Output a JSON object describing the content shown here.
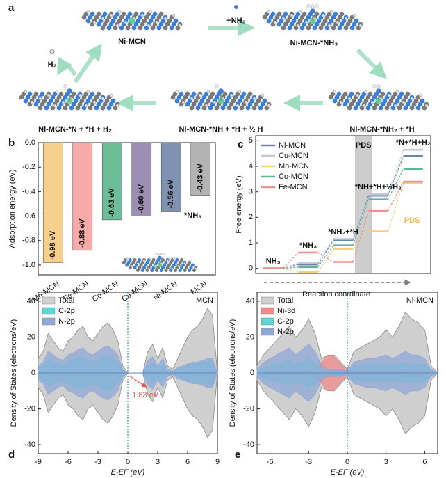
{
  "scheme": {
    "panel_label": "a",
    "labels": [
      "Ni-MCN",
      "+NH₃",
      "Ni-MCN-*NH₃",
      "H₂",
      "Ni-MCN-*N + *H + H₂",
      "Ni-MCN-*NH + *H + ½ H",
      "Ni-MCN-*NH₂ + *H"
    ]
  },
  "chart_data": [
    {
      "type": "bar",
      "panel_label": "b",
      "ylabel": "Adsorption energy (eV)",
      "annotation": "*NH₃",
      "categories": [
        "Mn-MCN",
        "Fe-MCN",
        "Co-MCN",
        "Cu-MCN",
        "Ni-MCN",
        "MCN"
      ],
      "values": [
        -0.98,
        -0.88,
        -0.63,
        -0.6,
        -0.56,
        -0.43
      ],
      "value_labels": [
        "-0.98 eV",
        "-0.88 eV",
        "-0.63 eV",
        "-0.60 eV",
        "-0.56 eV",
        "-0.43 eV"
      ],
      "colors": [
        "#f6d18e",
        "#f8a9aa",
        "#6dbd98",
        "#9c8fb3",
        "#7f92b2",
        "#b3b3b3"
      ],
      "ylim": [
        -1.08,
        0
      ],
      "yticks": [
        {
          "value": 0,
          "label": "0.0"
        },
        -0.2,
        -0.4,
        -0.6,
        -0.8,
        {
          "value": -1,
          "label": "-1.0"
        }
      ]
    },
    {
      "type": "energy_levels",
      "panel_label": "c",
      "ylabel": "Free energy (eV)",
      "xlabel": "Reaction coordinate",
      "categories": [
        "NH₃",
        "*NH₃",
        "*NH₂+*H",
        "*NH+*H+½H₂",
        "*N+*H+H₂"
      ],
      "series": [
        {
          "name": "Ni-MCN",
          "color": "#6f82a8",
          "values": [
            0,
            0.15,
            1.1,
            2.85,
            4.4
          ]
        },
        {
          "name": "Cu-MCN",
          "color": "#c5c6d8",
          "values": [
            0,
            0.2,
            1.15,
            2.9,
            4.65
          ]
        },
        {
          "name": "Mn-MCN",
          "color": "#f5cf80",
          "values": [
            0,
            -0.15,
            0.75,
            1.45,
            3.35
          ]
        },
        {
          "name": "Co-MCN",
          "color": "#5fb59a",
          "values": [
            0,
            0.05,
            0.9,
            2.7,
            3.9
          ]
        },
        {
          "name": "Fe-MCN",
          "color": "#f08f8f",
          "values": [
            0,
            0.62,
            0.25,
            2.25,
            3.4
          ]
        }
      ],
      "ylim": [
        -0.2,
        5.2
      ],
      "yticks": [
        0,
        1,
        2,
        3,
        4,
        5
      ],
      "legend": "upper left",
      "pds_band": {
        "label": "PDS",
        "after_category": 2
      },
      "annotations": [
        {
          "text": "PDS",
          "color": "#f5b942"
        }
      ]
    },
    {
      "type": "dos",
      "panel_label": "d",
      "name_label": "MCN",
      "xlabel": "E-EF (eV)",
      "ylabel": "Density of States (electrons/eV)",
      "x": [
        -9,
        -8.5,
        -8,
        -7.5,
        -7,
        -6.5,
        -6,
        -5.5,
        -5,
        -4.5,
        -4,
        -3.5,
        -3,
        -2.5,
        -2,
        -1.5,
        -1,
        -0.5,
        0,
        0.5,
        1,
        1.5,
        2,
        2.5,
        3,
        3.5,
        4,
        4.5,
        5,
        5.5,
        6,
        6.5,
        7,
        7.5,
        8,
        8.5,
        9
      ],
      "series": [
        {
          "name": "Total",
          "color": "#cfcfcf",
          "values": [
            8,
            12,
            22,
            18,
            14,
            12,
            18,
            20,
            24,
            26,
            20,
            18,
            22,
            26,
            28,
            24,
            18,
            4,
            0,
            0,
            0,
            0,
            12,
            16,
            8,
            14,
            4,
            2,
            8,
            14,
            20,
            24,
            26,
            30,
            36,
            32,
            0
          ]
        },
        {
          "name": "C-2p",
          "color": "#5cd6d6",
          "values": [
            3,
            4,
            7,
            6,
            5,
            4,
            6,
            7,
            8,
            9,
            7,
            6,
            7,
            9,
            10,
            8,
            6,
            2,
            0,
            0,
            0,
            0,
            4,
            5,
            3,
            5,
            1,
            1,
            2,
            3,
            4,
            5,
            5,
            6,
            6,
            7,
            0
          ]
        },
        {
          "name": "N-2p",
          "color": "#8fa8d8",
          "values": [
            4,
            6,
            12,
            10,
            8,
            7,
            10,
            11,
            13,
            14,
            11,
            10,
            12,
            14,
            15,
            13,
            10,
            2,
            0,
            0,
            0,
            0,
            7,
            9,
            4,
            8,
            2,
            1,
            3,
            4,
            5,
            6,
            6,
            7,
            8,
            8,
            0
          ]
        }
      ],
      "spin_symmetric": true,
      "xlim": [
        -9,
        9
      ],
      "xticks": [
        -9,
        -6,
        -3,
        0,
        3,
        6,
        9
      ],
      "ylim": [
        -45,
        45
      ],
      "yticks": [
        -40,
        -20,
        0,
        20,
        40
      ],
      "fermi_level": 0,
      "legend": "upper left",
      "gap_annotation": {
        "text": "1.83 eV",
        "x": [
          0,
          1.83
        ],
        "color": "#f05050"
      }
    },
    {
      "type": "dos",
      "panel_label": "e",
      "name_label": "Ni-MCN",
      "xlabel": "E-EF (eV)",
      "ylabel": "Density of States (electrons/eV)",
      "x": [
        -7,
        -6.5,
        -6,
        -5.5,
        -5,
        -4.5,
        -4,
        -3.5,
        -3,
        -2.5,
        -2,
        -1.5,
        -1,
        -0.5,
        0,
        0.5,
        1,
        1.5,
        2,
        2.5,
        3,
        3.5,
        4,
        4.5,
        5,
        5.5,
        6,
        6.5,
        7
      ],
      "series": [
        {
          "name": "Total",
          "color": "#cfcfcf",
          "values": [
            4,
            10,
            14,
            18,
            22,
            26,
            20,
            24,
            30,
            22,
            8,
            10,
            10,
            6,
            2,
            12,
            14,
            16,
            18,
            20,
            24,
            20,
            26,
            34,
            30,
            28,
            24,
            4,
            0
          ]
        },
        {
          "name": "Ni-3d",
          "color": "#f08a8a",
          "values": [
            0,
            0,
            1,
            1,
            1,
            1,
            1,
            1,
            2,
            2,
            6,
            10,
            9,
            5,
            1,
            1,
            1,
            1,
            1,
            1,
            1,
            1,
            1,
            2,
            2,
            2,
            2,
            0,
            0
          ]
        },
        {
          "name": "C-2p",
          "color": "#5cd6d6",
          "values": [
            1,
            3,
            4,
            5,
            6,
            7,
            5,
            6,
            8,
            6,
            2,
            1,
            1,
            1,
            1,
            4,
            4,
            5,
            5,
            5,
            5,
            5,
            5,
            6,
            5,
            5,
            5,
            1,
            0
          ]
        },
        {
          "name": "N-2p",
          "color": "#8fa8d8",
          "values": [
            2,
            6,
            8,
            10,
            12,
            14,
            10,
            13,
            16,
            12,
            4,
            2,
            2,
            2,
            1,
            6,
            7,
            8,
            8,
            9,
            10,
            8,
            10,
            12,
            10,
            10,
            8,
            2,
            0
          ]
        }
      ],
      "spin_symmetric": true,
      "xlim": [
        -7,
        7
      ],
      "xticks": [
        -6,
        -3,
        0,
        3,
        6
      ],
      "ylim": [
        -45,
        45
      ],
      "yticks": [
        -40,
        -20,
        0,
        20,
        40
      ],
      "fermi_level": 0,
      "legend": "upper left"
    }
  ]
}
